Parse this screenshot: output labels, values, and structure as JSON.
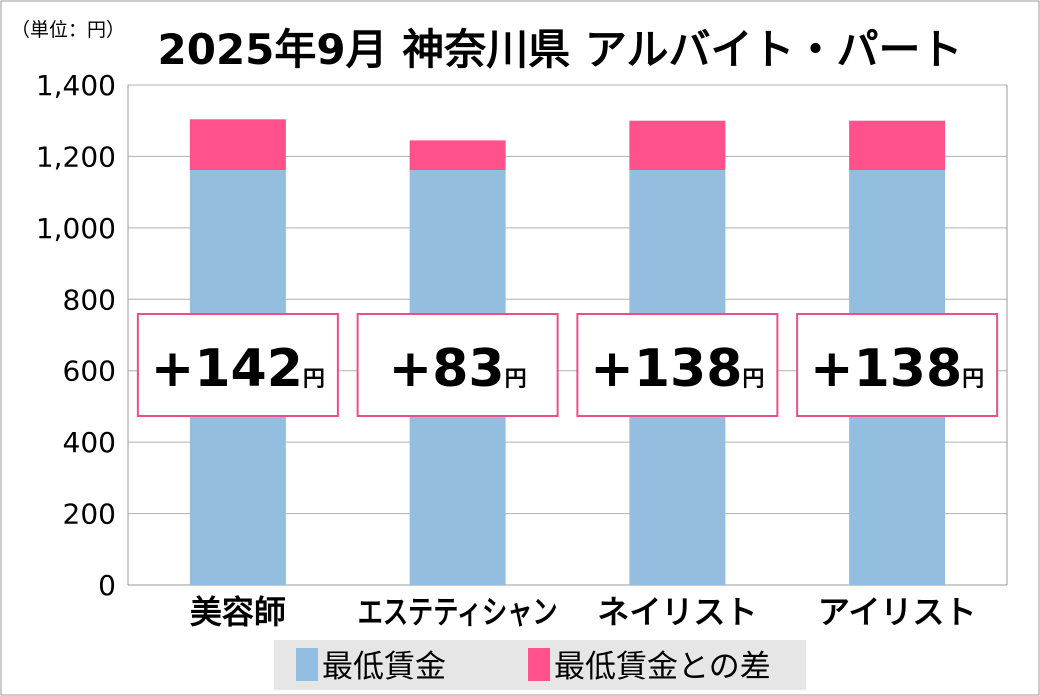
{
  "chart_data": {
    "type": "bar",
    "stacked": true,
    "title": "2025年9月 神奈川県 アルバイト・パート",
    "unit_label": "（単位：円）",
    "categories": [
      "美容師",
      "エステティシャン",
      "ネイリスト",
      "アイリスト"
    ],
    "series": [
      {
        "name": "最低賃金",
        "values": [
          1162,
          1162,
          1162,
          1162
        ],
        "color": "#94bedf"
      },
      {
        "name": "最低賃金との差",
        "values": [
          142,
          83,
          138,
          138
        ],
        "color": "#ff528c"
      }
    ],
    "annotations": [
      "+142",
      "+83",
      "+138",
      "+138"
    ],
    "annotation_unit": "円",
    "ylim": [
      0,
      1400
    ],
    "yticks": [
      "0",
      "200",
      "400",
      "600",
      "800",
      "1,000",
      "1,200",
      "1,400"
    ],
    "grid": true,
    "legend_position": "bottom"
  }
}
